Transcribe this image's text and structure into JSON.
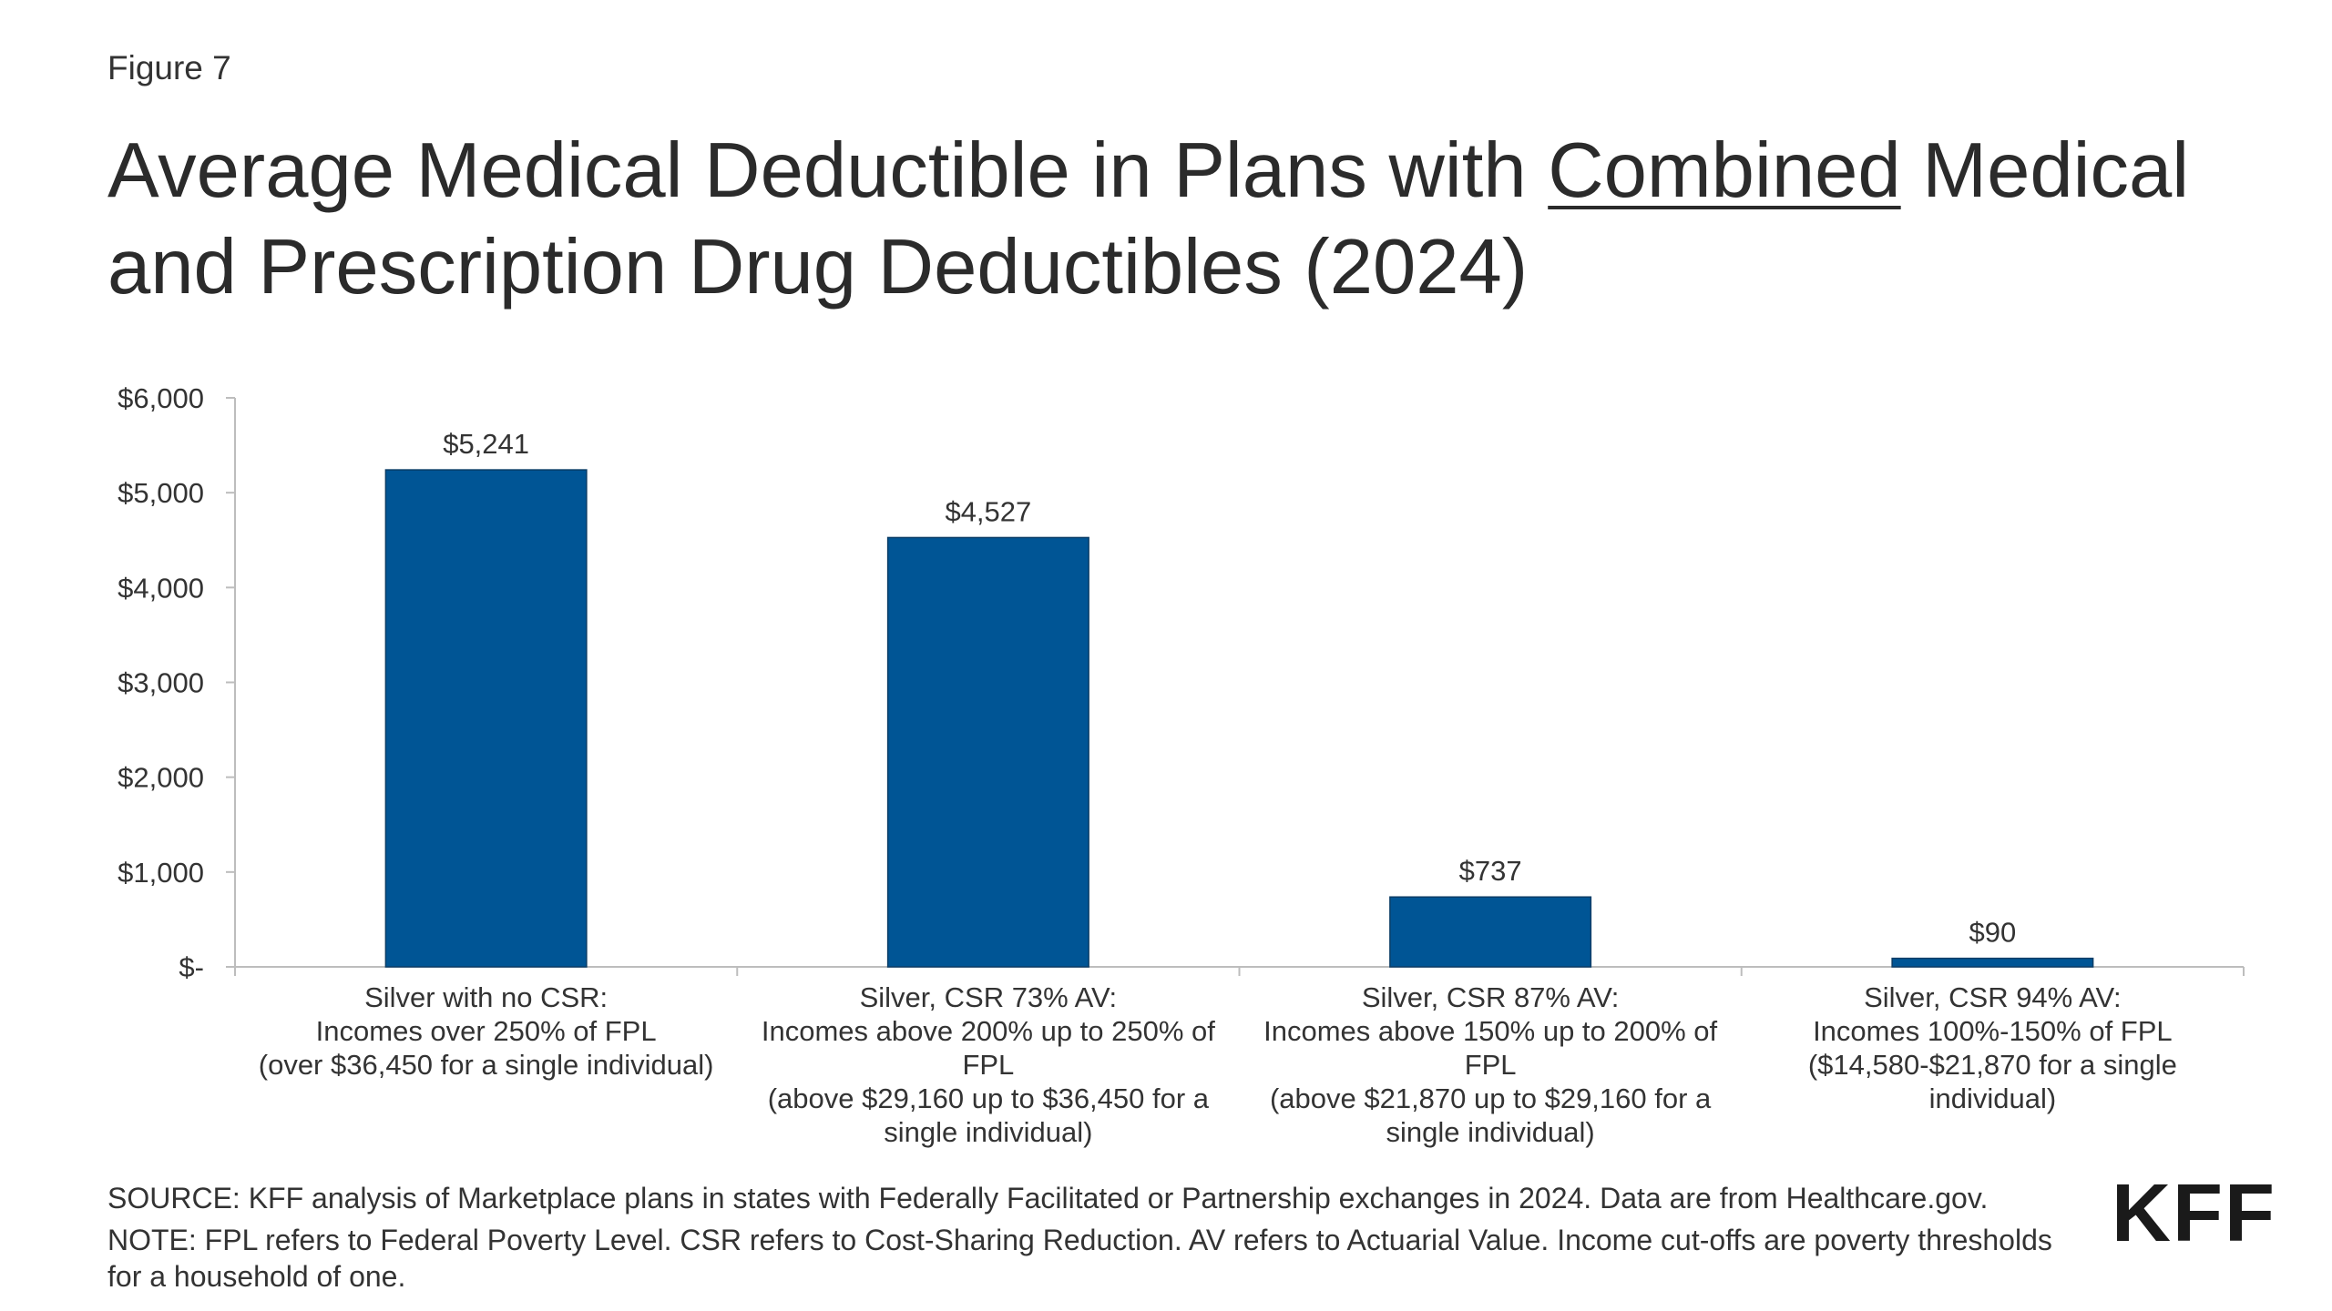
{
  "figure_label": "Figure 7",
  "title": {
    "part1": "Average Medical Deductible in Plans with ",
    "emphasis": "Combined",
    "part2": " Medical and Prescription Drug Deductibles (2024)"
  },
  "chart_data": {
    "type": "bar",
    "title": "Average Medical Deductible in Plans with Combined Medical and Prescription Drug Deductibles (2024)",
    "categories": [
      [
        "Silver with no CSR:",
        "Incomes over 250% of FPL",
        "(over $36,450 for a single individual)"
      ],
      [
        "Silver, CSR 73% AV:",
        "Incomes above 200% up to 250% of",
        "FPL",
        "(above $29,160 up to $36,450 for a",
        "single individual)"
      ],
      [
        "Silver, CSR 87% AV:",
        "Incomes above 150% up to 200% of",
        "FPL",
        "(above $21,870 up to $29,160 for a",
        "single individual)"
      ],
      [
        "Silver, CSR 94% AV:",
        "Incomes 100%-150% of FPL",
        "($14,580-$21,870 for a single",
        "individual)"
      ]
    ],
    "values": [
      5241,
      4527,
      737,
      90
    ],
    "data_labels": [
      "$5,241",
      "$4,527",
      "$737",
      "$90"
    ],
    "ylim": [
      0,
      6000
    ],
    "yticks": [
      0,
      1000,
      2000,
      3000,
      4000,
      5000,
      6000
    ],
    "ytick_labels": [
      "$-",
      "$1,000",
      "$2,000",
      "$3,000",
      "$4,000",
      "$5,000",
      "$6,000"
    ],
    "xlabel": "",
    "ylabel": "",
    "grid": false,
    "bar_color": "#005595"
  },
  "footer": {
    "source": "SOURCE: KFF analysis of Marketplace plans in states with Federally Facilitated or Partnership exchanges in 2024. Data are from Healthcare.gov.",
    "note": "NOTE: FPL refers to Federal Poverty Level. CSR refers to Cost-Sharing Reduction. AV refers to Actuarial Value. Income cut-offs are poverty thresholds for a household of one."
  },
  "logo": "KFF"
}
